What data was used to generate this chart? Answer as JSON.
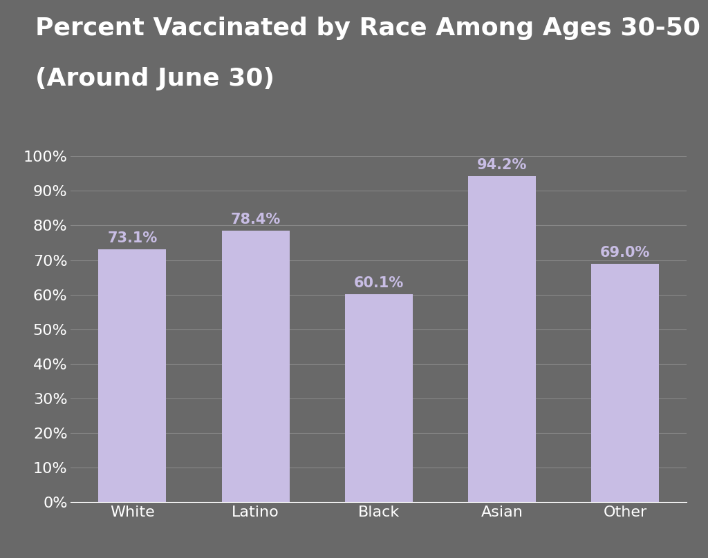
{
  "title_line1": "Percent Vaccinated by Race Among Ages 30-50",
  "title_line2": "(Around June 30)",
  "categories": [
    "White",
    "Latino",
    "Black",
    "Asian",
    "Other"
  ],
  "values": [
    73.1,
    78.4,
    60.1,
    94.2,
    69.0
  ],
  "labels": [
    "73.1%",
    "78.4%",
    "60.1%",
    "94.2%",
    "69.0%"
  ],
  "bar_color": "#c8bde4",
  "background_color": "#696969",
  "text_color": "#ffffff",
  "label_color": "#c8bde4",
  "grid_color": "#888888",
  "title_fontsize": 26,
  "axis_label_fontsize": 16,
  "bar_label_fontsize": 15,
  "ylim": [
    0,
    100
  ],
  "yticks": [
    0,
    10,
    20,
    30,
    40,
    50,
    60,
    70,
    80,
    90,
    100
  ]
}
